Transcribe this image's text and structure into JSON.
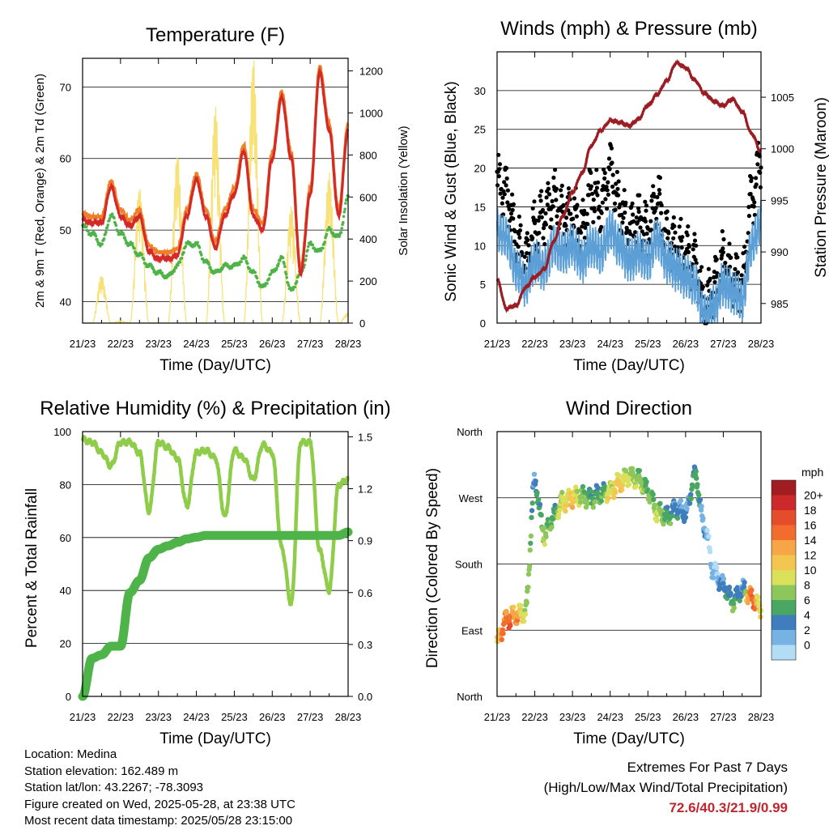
{
  "panels": {
    "temperature": {
      "title": "Temperature (F)",
      "ylabel_left": "2m & 9m T (Red, Orange) & 2m Td (Green)",
      "ylabel_right": "Solar Insolation (Yellow)",
      "xlabel": "Time (Day/UTC)"
    },
    "winds": {
      "title": "Winds (mph) & Pressure (mb)",
      "ylabel_left": "Sonic Wind & Gust (Blue, Black)",
      "ylabel_right": "Station Pressure (Maroon)",
      "xlabel": "Time (Day/UTC)"
    },
    "humidity": {
      "title": "Relative Humidity (%) & Precipitation (in)",
      "ylabel_left": "Percent & Total Rainfall",
      "xlabel": "Time (Day/UTC)"
    },
    "direction": {
      "title": "Wind Direction",
      "ylabel_left": "Direction (Colored By Speed)",
      "xlabel": "Time (Day/UTC)",
      "legend_title": "mph"
    }
  },
  "station": {
    "location": "Location: Medina",
    "elevation": "Station elevation: 162.489 m",
    "latlon": "Station lat/lon: 43.2267; -78.3093",
    "created": "Figure created on Wed, 2025-05-28, at 23:38 UTC",
    "recent": "Most recent data timestamp: 2025/05/28 23:15:00"
  },
  "extremes": {
    "line1": "Extremes For Past 7 Days",
    "line2": "(High/Low/Max Wind/Total Precipitation)",
    "values": "72.6/40.3/21.9/0.99"
  },
  "colors": {
    "temp_2m": "#d42a27",
    "temp_9m": "#f07f2a",
    "dewpoint": "#4eb348",
    "solar": "#f7e27a",
    "wind": "#5b9fd6",
    "gust": "#000000",
    "pressure": "#9b1c22",
    "rh": "#8fcc4a",
    "precip": "#4eb348"
  },
  "chart_data": [
    {
      "type": "line",
      "title": "Temperature (F)",
      "xlabel": "Time (Day/UTC)",
      "ylabel": "2m & 9m T (Red, Orange) & 2m Td (Green)",
      "y2label": "Solar Insolation (Yellow)",
      "x_ticks": [
        "21/23",
        "22/23",
        "23/23",
        "24/23",
        "25/23",
        "26/23",
        "27/23",
        "28/23"
      ],
      "ylim": [
        37,
        74
      ],
      "y_ticks": [
        40,
        50,
        60,
        70
      ],
      "y2lim": [
        0,
        1260
      ],
      "y2_ticks": [
        0,
        200,
        400,
        600,
        800,
        1000,
        1200
      ],
      "x": [
        0,
        0.25,
        0.5,
        0.75,
        1.0,
        1.25,
        1.5,
        1.75,
        2.0,
        2.25,
        2.5,
        2.75,
        3.0,
        3.25,
        3.5,
        3.75,
        4.0,
        4.25,
        4.5,
        4.75,
        5.0,
        5.25,
        5.5,
        5.75,
        6.0,
        6.25,
        6.5,
        6.75,
        7.0
      ],
      "series": [
        {
          "name": "2m T",
          "values": [
            51.5,
            51,
            51,
            56,
            52,
            50.5,
            52,
            47,
            46,
            46,
            46.5,
            52,
            57,
            52,
            47.5,
            52,
            55,
            61,
            52,
            50,
            60,
            68.5,
            60,
            44,
            55,
            72,
            64,
            52,
            64
          ]
        },
        {
          "name": "2m Td",
          "values": [
            50.5,
            49.5,
            48,
            52,
            49.5,
            48,
            46.5,
            45,
            44,
            43.5,
            45,
            48,
            48,
            45.5,
            44,
            45,
            45,
            46,
            44,
            42,
            44,
            46,
            41.5,
            44,
            48,
            47,
            50,
            49,
            54.5
          ]
        },
        {
          "name": "Solar Insolation",
          "y_axis": "right",
          "values": [
            0,
            0,
            230,
            0,
            10,
            0,
            650,
            0,
            0,
            0,
            810,
            0,
            0,
            0,
            1040,
            0,
            0,
            0,
            1270,
            0,
            0,
            0,
            560,
            0,
            0,
            0,
            720,
            0,
            50
          ]
        }
      ]
    },
    {
      "type": "line",
      "title": "Winds (mph) & Pressure (mb)",
      "xlabel": "Time (Day/UTC)",
      "ylabel": "Sonic Wind & Gust (Blue, Black)",
      "y2label": "Station Pressure (Maroon)",
      "x_ticks": [
        "21/23",
        "22/23",
        "23/23",
        "24/23",
        "25/23",
        "26/23",
        "27/23",
        "28/23"
      ],
      "ylim": [
        0,
        35
      ],
      "y_ticks": [
        0,
        5,
        10,
        15,
        20,
        25,
        30
      ],
      "y2lim": [
        983.1,
        1009.4
      ],
      "y2_ticks": [
        985,
        990,
        995,
        1000,
        1005
      ],
      "x": [
        0,
        0.25,
        0.5,
        0.75,
        1.0,
        1.25,
        1.5,
        1.75,
        2.0,
        2.25,
        2.5,
        2.75,
        3.0,
        3.25,
        3.5,
        3.75,
        4.0,
        4.25,
        4.5,
        4.75,
        5.0,
        5.25,
        5.5,
        5.75,
        6.0,
        6.25,
        6.5,
        6.75,
        7.0
      ],
      "series": [
        {
          "name": "Wind",
          "values": [
            12,
            11,
            7,
            5,
            8,
            7,
            10,
            9,
            10,
            8,
            10,
            9,
            12,
            10,
            8,
            9,
            8,
            11,
            8,
            7,
            6,
            5,
            1,
            2,
            5,
            4,
            3,
            10,
            13
          ]
        },
        {
          "name": "Gust",
          "values": [
            18,
            17,
            11,
            8,
            12,
            14,
            16,
            14,
            14,
            12,
            17,
            15,
            20,
            15,
            12,
            13,
            12,
            16,
            11,
            10,
            9,
            8,
            2,
            5,
            8,
            6,
            5,
            16,
            21
          ]
        },
        {
          "name": "Station Pressure",
          "y_axis": "right",
          "values": [
            987.3,
            984.5,
            984.8,
            986.5,
            987.6,
            988.3,
            991,
            993.5,
            995.8,
            997.6,
            1000.3,
            1001.8,
            1002.7,
            1002.6,
            1002.2,
            1002.9,
            1004.2,
            1005.3,
            1006.6,
            1008.3,
            1007.9,
            1006.6,
            1005.4,
            1004.6,
            1004.2,
            1004.8,
            1003.6,
            1001.5,
            999.7
          ]
        }
      ]
    },
    {
      "type": "line",
      "title": "Relative Humidity (%) & Precipitation (in)",
      "xlabel": "Time (Day/UTC)",
      "ylabel": "Percent & Total Rainfall",
      "x_ticks": [
        "21/23",
        "22/23",
        "23/23",
        "24/23",
        "25/23",
        "26/23",
        "27/23",
        "28/23"
      ],
      "ylim": [
        0,
        100
      ],
      "y_ticks": [
        0,
        20,
        40,
        60,
        80,
        100
      ],
      "y2lim": [
        0,
        1.53
      ],
      "y2_ticks": [
        0.0,
        0.3,
        0.6,
        0.9,
        1.2,
        1.5
      ],
      "x": [
        0,
        0.25,
        0.5,
        0.75,
        1.0,
        1.25,
        1.5,
        1.75,
        2.0,
        2.25,
        2.5,
        2.75,
        3.0,
        3.25,
        3.5,
        3.75,
        4.0,
        4.25,
        4.5,
        4.75,
        5.0,
        5.25,
        5.5,
        5.75,
        6.0,
        6.25,
        6.5,
        6.75,
        7.0
      ],
      "series": [
        {
          "name": "Relative Humidity",
          "values": [
            97,
            96,
            92,
            87,
            96,
            96,
            92,
            70,
            96,
            94,
            90,
            72,
            92,
            93,
            90,
            68,
            93,
            90,
            82,
            95,
            92,
            56,
            35,
            96,
            96,
            55,
            40,
            80,
            82
          ]
        },
        {
          "name": "Total Precipitation",
          "y_axis": "right",
          "values": [
            0,
            0.22,
            0.24,
            0.29,
            0.29,
            0.6,
            0.67,
            0.8,
            0.85,
            0.87,
            0.89,
            0.91,
            0.92,
            0.93,
            0.93,
            0.93,
            0.93,
            0.93,
            0.93,
            0.93,
            0.93,
            0.93,
            0.93,
            0.93,
            0.93,
            0.93,
            0.93,
            0.93,
            0.95
          ]
        }
      ]
    },
    {
      "type": "scatter",
      "title": "Wind Direction",
      "xlabel": "Time (Day/UTC)",
      "ylabel": "Direction (Colored By Speed)",
      "x_ticks": [
        "21/23",
        "22/23",
        "23/23",
        "24/23",
        "25/23",
        "26/23",
        "27/23",
        "28/23"
      ],
      "y_ticks": [
        "North",
        "East",
        "South",
        "West",
        "North"
      ],
      "ylim": [
        0,
        360
      ],
      "legend": {
        "title": "mph",
        "labels": [
          "20+",
          "18",
          "16",
          "14",
          "12",
          "10",
          "8",
          "6",
          "4",
          "2",
          "0"
        ],
        "colors": [
          "#a11d21",
          "#cc2a2a",
          "#e54c2c",
          "#f26d2d",
          "#f6a647",
          "#f3c64f",
          "#dbe05a",
          "#8dc65b",
          "#4aa663",
          "#3f7dbd",
          "#76b3e3",
          "#b3dcf5"
        ]
      },
      "x": [
        0,
        0.25,
        0.5,
        0.75,
        1.0,
        1.25,
        1.5,
        1.75,
        2.0,
        2.25,
        2.5,
        2.75,
        3.0,
        3.25,
        3.5,
        3.75,
        4.0,
        4.25,
        4.5,
        4.75,
        5.0,
        5.25,
        5.5,
        5.75,
        6.0,
        6.25,
        6.5,
        6.75,
        7.0
      ],
      "series": [
        {
          "name": "Direction",
          "values": [
            75,
            105,
            110,
            115,
            290,
            220,
            245,
            265,
            270,
            272,
            270,
            275,
            280,
            290,
            300,
            295,
            280,
            250,
            245,
            255,
            250,
            300,
            230,
            170,
            150,
            130,
            145,
            135,
            120
          ]
        },
        {
          "name": "Speed",
          "values": [
            12,
            16,
            14,
            9,
            4,
            8,
            6,
            10,
            12,
            8,
            6,
            6,
            10,
            12,
            9,
            8,
            7,
            9,
            6,
            4,
            3,
            6,
            2,
            1,
            4,
            6,
            3,
            17,
            10
          ]
        }
      ]
    }
  ]
}
